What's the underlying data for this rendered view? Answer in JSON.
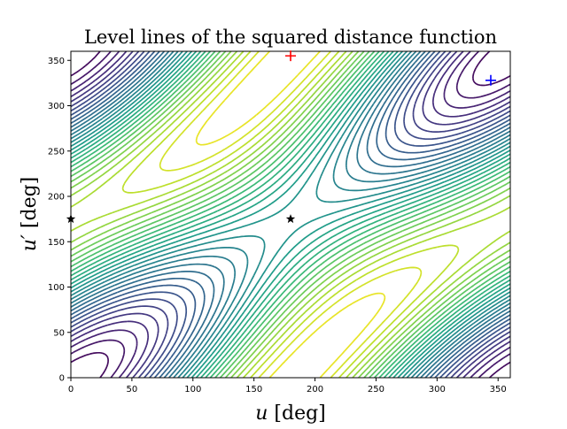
{
  "chart_data": {
    "type": "contour",
    "title": "Level lines of the squared distance function",
    "xlabel_var": "u",
    "xlabel_unit": "[deg]",
    "ylabel_var": "u′",
    "ylabel_unit": "[deg]",
    "xlim": [
      0,
      360
    ],
    "ylim": [
      0,
      360
    ],
    "xticks": [
      "0",
      "50",
      "100",
      "150",
      "200",
      "250",
      "300",
      "350"
    ],
    "yticks": [
      "0",
      "50",
      "100",
      "150",
      "200",
      "250",
      "300",
      "350"
    ],
    "colormap": "viridis",
    "grid": false,
    "markers": [
      {
        "kind": "plus",
        "color": "#ff0000",
        "u": 180,
        "v": 355
      },
      {
        "kind": "plus",
        "color": "#0000ff",
        "u": 344,
        "v": 328
      },
      {
        "kind": "star",
        "color": "#000000",
        "u": 0,
        "v": 175
      },
      {
        "kind": "star",
        "color": "#000000",
        "u": 180,
        "v": 175
      }
    ]
  }
}
